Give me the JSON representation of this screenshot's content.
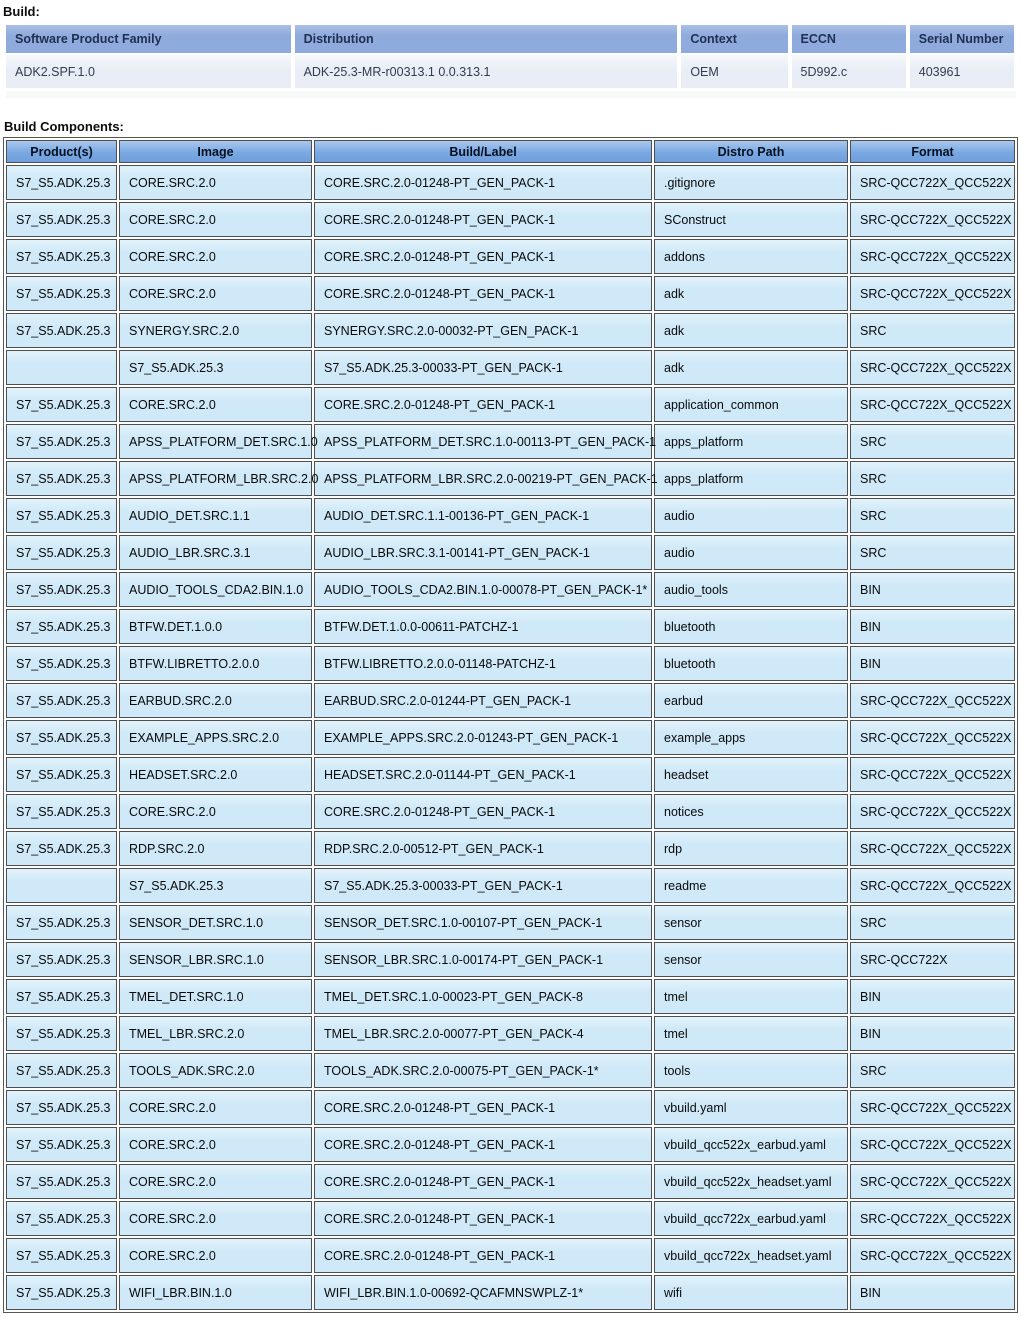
{
  "labels": {
    "build": "Build:",
    "components": "Build Components:"
  },
  "build_table": {
    "headers": [
      "Software Product Family",
      "Distribution",
      "Context",
      "ECCN",
      "Serial Number"
    ],
    "rows": [
      [
        "ADK2.SPF.1.0",
        "ADK-25.3-MR-r00313.1 0.0.313.1",
        "OEM",
        "5D992.c",
        "403961"
      ]
    ]
  },
  "components_table": {
    "headers": [
      "Product(s)",
      "Image",
      "Build/Label",
      "Distro Path",
      "Format"
    ],
    "rows": [
      [
        "S7_S5.ADK.25.3",
        "CORE.SRC.2.0",
        "CORE.SRC.2.0-01248-PT_GEN_PACK-1",
        ".gitignore",
        "SRC-QCC722X_QCC522X"
      ],
      [
        "S7_S5.ADK.25.3",
        "CORE.SRC.2.0",
        "CORE.SRC.2.0-01248-PT_GEN_PACK-1",
        "SConstruct",
        "SRC-QCC722X_QCC522X"
      ],
      [
        "S7_S5.ADK.25.3",
        "CORE.SRC.2.0",
        "CORE.SRC.2.0-01248-PT_GEN_PACK-1",
        "addons",
        "SRC-QCC722X_QCC522X"
      ],
      [
        "S7_S5.ADK.25.3",
        "CORE.SRC.2.0",
        "CORE.SRC.2.0-01248-PT_GEN_PACK-1",
        "adk",
        "SRC-QCC722X_QCC522X"
      ],
      [
        "S7_S5.ADK.25.3",
        "SYNERGY.SRC.2.0",
        "SYNERGY.SRC.2.0-00032-PT_GEN_PACK-1",
        "adk",
        "SRC"
      ],
      [
        "",
        "S7_S5.ADK.25.3",
        "S7_S5.ADK.25.3-00033-PT_GEN_PACK-1",
        "adk",
        "SRC-QCC722X_QCC522X"
      ],
      [
        "S7_S5.ADK.25.3",
        "CORE.SRC.2.0",
        "CORE.SRC.2.0-01248-PT_GEN_PACK-1",
        "application_common",
        "SRC-QCC722X_QCC522X"
      ],
      [
        "S7_S5.ADK.25.3",
        "APSS_PLATFORM_DET.SRC.1.0",
        "APSS_PLATFORM_DET.SRC.1.0-00113-PT_GEN_PACK-1",
        "apps_platform",
        "SRC"
      ],
      [
        "S7_S5.ADK.25.3",
        "APSS_PLATFORM_LBR.SRC.2.0",
        "APSS_PLATFORM_LBR.SRC.2.0-00219-PT_GEN_PACK-1",
        "apps_platform",
        "SRC"
      ],
      [
        "S7_S5.ADK.25.3",
        "AUDIO_DET.SRC.1.1",
        "AUDIO_DET.SRC.1.1-00136-PT_GEN_PACK-1",
        "audio",
        "SRC"
      ],
      [
        "S7_S5.ADK.25.3",
        "AUDIO_LBR.SRC.3.1",
        "AUDIO_LBR.SRC.3.1-00141-PT_GEN_PACK-1",
        "audio",
        "SRC"
      ],
      [
        "S7_S5.ADK.25.3",
        "AUDIO_TOOLS_CDA2.BIN.1.0",
        "AUDIO_TOOLS_CDA2.BIN.1.0-00078-PT_GEN_PACK-1*",
        "audio_tools",
        "BIN"
      ],
      [
        "S7_S5.ADK.25.3",
        "BTFW.DET.1.0.0",
        "BTFW.DET.1.0.0-00611-PATCHZ-1",
        "bluetooth",
        "BIN"
      ],
      [
        "S7_S5.ADK.25.3",
        "BTFW.LIBRETTO.2.0.0",
        "BTFW.LIBRETTO.2.0.0-01148-PATCHZ-1",
        "bluetooth",
        "BIN"
      ],
      [
        "S7_S5.ADK.25.3",
        "EARBUD.SRC.2.0",
        "EARBUD.SRC.2.0-01244-PT_GEN_PACK-1",
        "earbud",
        "SRC-QCC722X_QCC522X"
      ],
      [
        "S7_S5.ADK.25.3",
        "EXAMPLE_APPS.SRC.2.0",
        "EXAMPLE_APPS.SRC.2.0-01243-PT_GEN_PACK-1",
        "example_apps",
        "SRC-QCC722X_QCC522X"
      ],
      [
        "S7_S5.ADK.25.3",
        "HEADSET.SRC.2.0",
        "HEADSET.SRC.2.0-01144-PT_GEN_PACK-1",
        "headset",
        "SRC-QCC722X_QCC522X"
      ],
      [
        "S7_S5.ADK.25.3",
        "CORE.SRC.2.0",
        "CORE.SRC.2.0-01248-PT_GEN_PACK-1",
        "notices",
        "SRC-QCC722X_QCC522X"
      ],
      [
        "S7_S5.ADK.25.3",
        "RDP.SRC.2.0",
        "RDP.SRC.2.0-00512-PT_GEN_PACK-1",
        "rdp",
        "SRC-QCC722X_QCC522X"
      ],
      [
        "",
        "S7_S5.ADK.25.3",
        "S7_S5.ADK.25.3-00033-PT_GEN_PACK-1",
        "readme",
        "SRC-QCC722X_QCC522X"
      ],
      [
        "S7_S5.ADK.25.3",
        "SENSOR_DET.SRC.1.0",
        "SENSOR_DET.SRC.1.0-00107-PT_GEN_PACK-1",
        "sensor",
        "SRC"
      ],
      [
        "S7_S5.ADK.25.3",
        "SENSOR_LBR.SRC.1.0",
        "SENSOR_LBR.SRC.1.0-00174-PT_GEN_PACK-1",
        "sensor",
        "SRC-QCC722X"
      ],
      [
        "S7_S5.ADK.25.3",
        "TMEL_DET.SRC.1.0",
        "TMEL_DET.SRC.1.0-00023-PT_GEN_PACK-8",
        "tmel",
        "BIN"
      ],
      [
        "S7_S5.ADK.25.3",
        "TMEL_LBR.SRC.2.0",
        "TMEL_LBR.SRC.2.0-00077-PT_GEN_PACK-4",
        "tmel",
        "BIN"
      ],
      [
        "S7_S5.ADK.25.3",
        "TOOLS_ADK.SRC.2.0",
        "TOOLS_ADK.SRC.2.0-00075-PT_GEN_PACK-1*",
        "tools",
        "SRC"
      ],
      [
        "S7_S5.ADK.25.3",
        "CORE.SRC.2.0",
        "CORE.SRC.2.0-01248-PT_GEN_PACK-1",
        "vbuild.yaml",
        "SRC-QCC722X_QCC522X"
      ],
      [
        "S7_S5.ADK.25.3",
        "CORE.SRC.2.0",
        "CORE.SRC.2.0-01248-PT_GEN_PACK-1",
        "vbuild_qcc522x_earbud.yaml",
        "SRC-QCC722X_QCC522X"
      ],
      [
        "S7_S5.ADK.25.3",
        "CORE.SRC.2.0",
        "CORE.SRC.2.0-01248-PT_GEN_PACK-1",
        "vbuild_qcc522x_headset.yaml",
        "SRC-QCC722X_QCC522X"
      ],
      [
        "S7_S5.ADK.25.3",
        "CORE.SRC.2.0",
        "CORE.SRC.2.0-01248-PT_GEN_PACK-1",
        "vbuild_qcc722x_earbud.yaml",
        "SRC-QCC722X_QCC522X"
      ],
      [
        "S7_S5.ADK.25.3",
        "CORE.SRC.2.0",
        "CORE.SRC.2.0-01248-PT_GEN_PACK-1",
        "vbuild_qcc722x_headset.yaml",
        "SRC-QCC722X_QCC522X"
      ],
      [
        "S7_S5.ADK.25.3",
        "WIFI_LBR.BIN.1.0",
        "WIFI_LBR.BIN.1.0-00692-QCAFMNSWPLZ-1*",
        "wifi",
        "BIN"
      ]
    ]
  },
  "colors": {
    "build_header_bg": "#8FAADC",
    "build_row_bg": "#E9EEF6",
    "components_header_bg": "#79A8E2",
    "components_row_bg": "#CFE9F8",
    "components_border": "#4F4F4F"
  }
}
